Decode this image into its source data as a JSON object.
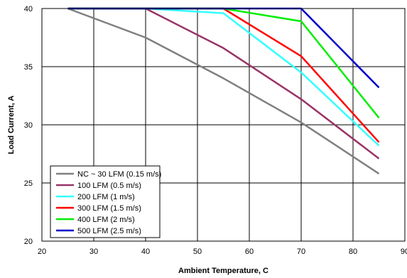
{
  "chart_data": {
    "type": "line",
    "title": "",
    "xlabel": "Ambient Temperature, C",
    "ylabel": "Load Current, A",
    "xlim": [
      20,
      90
    ],
    "ylim": [
      20,
      40
    ],
    "x_ticks": [
      "20",
      "30",
      "40",
      "50",
      "60",
      "70",
      "80",
      "90"
    ],
    "y_ticks": [
      "20",
      "25",
      "30",
      "35",
      "40"
    ],
    "grid": true,
    "legend_position": "bottom-left",
    "series": [
      {
        "name": "NC ~ 30 LFM (0.15 m/s)",
        "color": "#808080",
        "points": [
          [
            25,
            40
          ],
          [
            40,
            37.5
          ],
          [
            55,
            34
          ],
          [
            70,
            30.2
          ],
          [
            85,
            25.8
          ]
        ]
      },
      {
        "name": "100 LFM (0.5 m/s)",
        "color": "#993366",
        "points": [
          [
            25,
            40
          ],
          [
            40,
            40
          ],
          [
            55,
            36.6
          ],
          [
            70,
            32.2
          ],
          [
            85,
            27.1
          ]
        ]
      },
      {
        "name": "200 LFM (1 m/s)",
        "color": "#33FFFF",
        "points": [
          [
            25,
            40
          ],
          [
            40,
            40
          ],
          [
            55,
            39.6
          ],
          [
            70,
            34.5
          ],
          [
            85,
            28.2
          ]
        ]
      },
      {
        "name": "300 LFM (1.5 m/s)",
        "color": "#FF0000",
        "points": [
          [
            25,
            40
          ],
          [
            40,
            40
          ],
          [
            55,
            40
          ],
          [
            70,
            35.9
          ],
          [
            85,
            28.5
          ]
        ]
      },
      {
        "name": "400 LFM (2 m/s)",
        "color": "#00EE00",
        "points": [
          [
            25,
            40
          ],
          [
            40,
            40
          ],
          [
            55,
            40
          ],
          [
            70,
            38.9
          ],
          [
            85,
            30.6
          ]
        ]
      },
      {
        "name": "500 LFM (2.5 m/s)",
        "color": "#0000CC",
        "points": [
          [
            25,
            40
          ],
          [
            40,
            40
          ],
          [
            55,
            40
          ],
          [
            70,
            40
          ],
          [
            85,
            33.2
          ]
        ]
      }
    ]
  }
}
